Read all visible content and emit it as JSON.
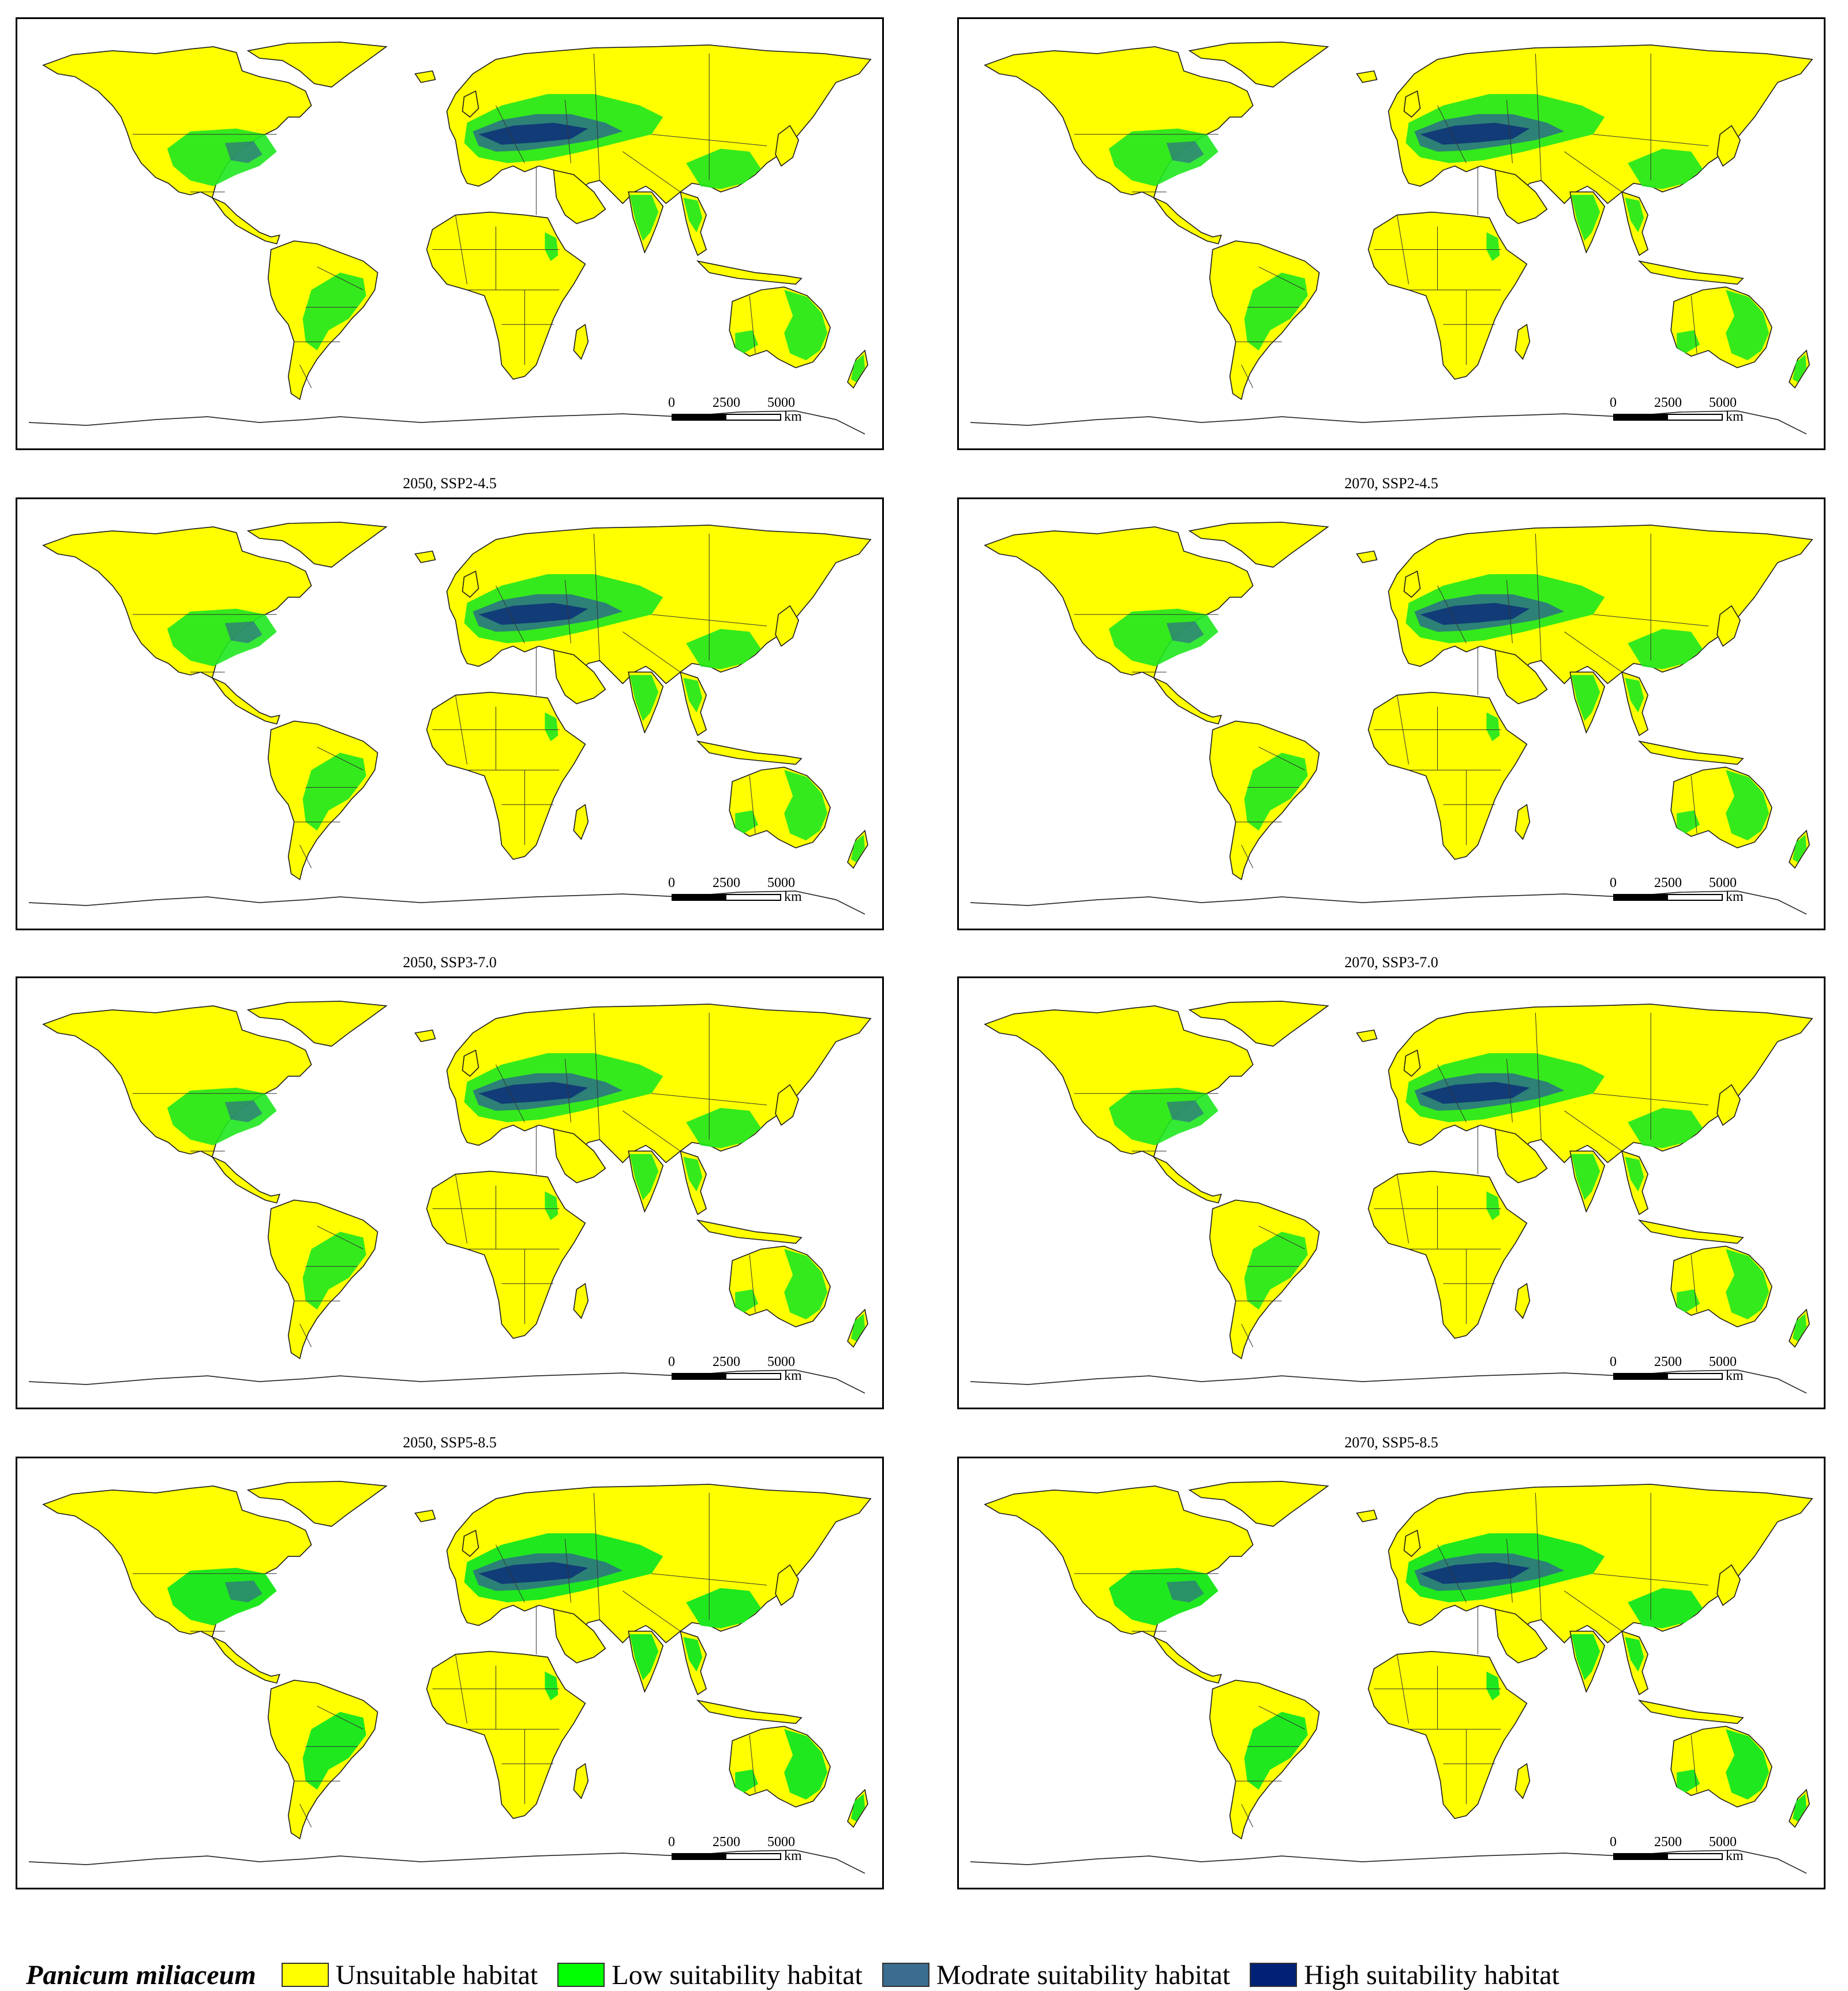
{
  "figure": {
    "species": "Panicum miliaceum",
    "panels": [
      {
        "title": ""
      },
      {
        "title": ""
      },
      {
        "title": "2050, SSP2-4.5"
      },
      {
        "title": "2070, SSP2-4.5"
      },
      {
        "title": "2050, SSP3-7.0"
      },
      {
        "title": "2070, SSP3-7.0"
      },
      {
        "title": "2050, SSP5-8.5"
      },
      {
        "title": "2070, SSP5-8.5"
      }
    ],
    "scalebar": {
      "ticks": [
        "0",
        "2500",
        "5000"
      ],
      "unit": "km"
    },
    "legend": [
      {
        "label": "Unsuitable habitat",
        "color": "#ffff00"
      },
      {
        "label": "Low suitability habitat",
        "color": "#00ff00"
      },
      {
        "label": "Modrate suitability habitat",
        "color": "#3a6d8f"
      },
      {
        "label": "High suitability habitat",
        "color": "#002175"
      }
    ]
  }
}
